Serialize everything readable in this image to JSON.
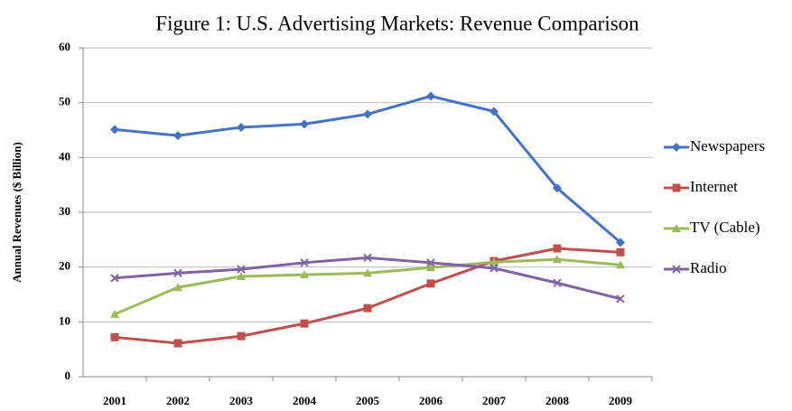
{
  "chart_data": {
    "type": "line",
    "title": "Figure 1: U.S. Advertising Markets: Revenue Comparison",
    "y_label": "Annual Revenues ($ Billion)",
    "categories": [
      "2001",
      "2002",
      "2003",
      "2004",
      "2005",
      "2006",
      "2007",
      "2008",
      "2009"
    ],
    "series": [
      {
        "name": "Newspapers",
        "color": "#4472c4",
        "marker": "diamond",
        "values": [
          45.1,
          44.0,
          45.5,
          46.1,
          47.9,
          51.2,
          48.4,
          34.4,
          24.5
        ]
      },
      {
        "name": "Internet",
        "color": "#c0504d",
        "marker": "square",
        "values": [
          7.2,
          6.1,
          7.4,
          9.7,
          12.5,
          17.0,
          21.1,
          23.4,
          22.7
        ]
      },
      {
        "name": "TV (Cable)",
        "color": "#9bbb59",
        "marker": "triangle",
        "values": [
          11.4,
          16.3,
          18.3,
          18.6,
          18.9,
          19.9,
          20.9,
          21.4,
          20.4
        ]
      },
      {
        "name": "Radio",
        "color": "#8064a2",
        "marker": "x",
        "values": [
          18.0,
          18.9,
          19.6,
          20.8,
          21.7,
          20.8,
          19.8,
          17.1,
          14.2
        ]
      }
    ],
    "ylim": [
      0,
      60
    ],
    "yticks": [
      0,
      10,
      20,
      30,
      40,
      50,
      60
    ],
    "grid": true,
    "legend": "right"
  }
}
